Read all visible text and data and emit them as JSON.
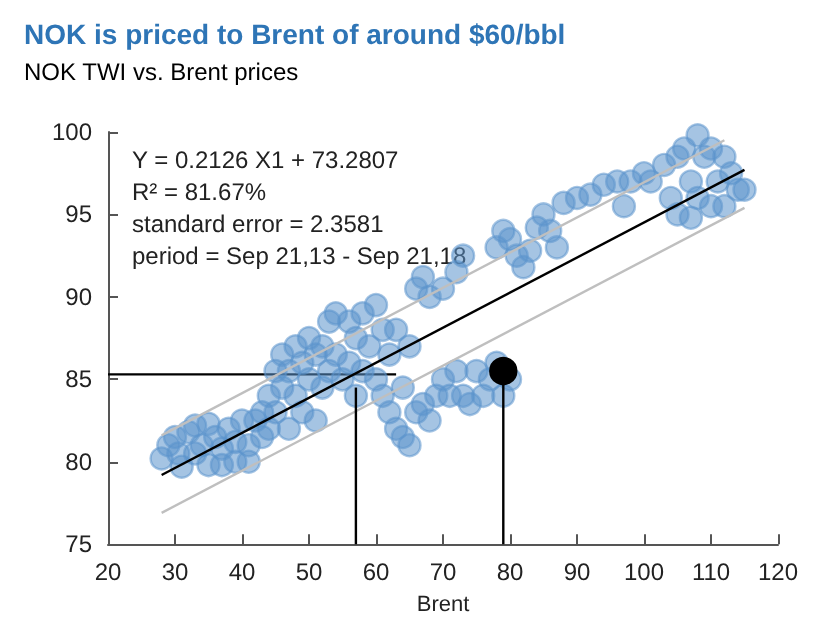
{
  "chart_data": {
    "type": "scatter",
    "title": "NOK is priced to Brent of around $60/bbl",
    "subtitle": "NOK TWI vs. Brent prices",
    "xlabel": "Brent",
    "marker": "circle",
    "grid": false,
    "annotations": [
      "Y = 0.2126 X1 + 73.2807",
      "R² = 81.67%",
      "standard error = 2.3581",
      "period = Sep 21,13 - Sep 21,18"
    ],
    "xlim": [
      20,
      120
    ],
    "xticks": [
      20,
      30,
      40,
      50,
      60,
      70,
      80,
      90,
      100,
      110,
      120
    ],
    "ylim": [
      75,
      100
    ],
    "yticks": [
      75,
      80,
      85,
      90,
      95,
      100
    ],
    "series": [
      {
        "type": "line",
        "color": "#000000",
        "marker": "none",
        "x": [
          20,
          63
        ],
        "values": [
          85.3,
          85.3
        ]
      },
      {
        "type": "scatter",
        "color": "#5b93cc",
        "x": [
          28,
          29,
          30,
          30.5,
          31,
          32,
          33,
          33,
          34,
          35,
          35,
          36,
          37,
          37,
          38,
          39,
          39,
          40,
          41,
          41,
          42,
          43,
          43,
          44,
          44,
          45,
          45,
          46,
          46,
          47,
          47,
          48,
          48,
          49,
          49,
          50,
          50,
          51,
          51,
          52,
          52,
          53,
          53,
          54,
          54,
          55,
          56,
          56,
          57,
          57,
          58,
          58,
          59,
          60,
          60,
          61,
          61,
          62,
          62,
          63,
          63,
          64,
          64,
          65,
          65,
          66,
          66,
          67,
          67,
          68,
          68,
          69,
          70,
          70,
          71,
          72,
          72,
          73,
          73,
          74,
          75,
          76,
          77,
          78,
          79,
          80,
          78,
          79,
          80,
          81,
          82,
          83,
          84,
          85,
          86,
          87,
          88,
          90,
          92,
          94,
          96,
          97,
          98,
          100,
          101,
          103,
          104,
          105,
          105,
          106,
          107,
          107,
          108,
          108,
          109,
          110,
          110,
          111,
          112,
          112,
          113,
          114,
          115
        ],
        "values": [
          80.2,
          81,
          81.5,
          80.5,
          79.7,
          81.8,
          82.2,
          80.5,
          81,
          82.3,
          79.8,
          81.5,
          80.8,
          79.8,
          82,
          81.2,
          80,
          82.5,
          81,
          80,
          82.5,
          83,
          81.5,
          82,
          84,
          83,
          85.5,
          86.5,
          84.5,
          82,
          85.5,
          87,
          84,
          83,
          86,
          87.5,
          85,
          82.5,
          86.5,
          87,
          84.5,
          88.5,
          85.5,
          89,
          86.5,
          85,
          88.5,
          86,
          84,
          87.5,
          89,
          85.5,
          87,
          89.5,
          85,
          88,
          84,
          83,
          86.5,
          82,
          88,
          81.5,
          84.5,
          81,
          87,
          83,
          90.5,
          91.2,
          83.5,
          82.5,
          90,
          84,
          90.5,
          85,
          84,
          85.5,
          91.5,
          92.5,
          84,
          83.5,
          85.5,
          84,
          85,
          86,
          84,
          85,
          93,
          94,
          93.5,
          92.5,
          91.8,
          92.8,
          94.2,
          95,
          94,
          93,
          95.7,
          96,
          96.2,
          96.8,
          97,
          95.5,
          97,
          97.5,
          97,
          98,
          96,
          98.5,
          95,
          99,
          97,
          94.8,
          99.8,
          96,
          98.5,
          99,
          95.5,
          97,
          98.5,
          95.5,
          97.5,
          96.5,
          96.5
        ]
      },
      {
        "type": "line",
        "color": "#000000",
        "marker": "none",
        "x": [
          28,
          115
        ],
        "values": [
          79.2,
          97.7
        ]
      },
      {
        "type": "line",
        "color": "#bfbfbf",
        "marker": "none",
        "x": [
          28,
          112
        ],
        "values": [
          81.6,
          99.5
        ]
      },
      {
        "type": "line",
        "color": "#bfbfbf",
        "marker": "none",
        "x": [
          28,
          115
        ],
        "values": [
          76.9,
          95.4
        ]
      },
      {
        "type": "line",
        "color": "#000000",
        "marker": "none",
        "x": [
          57,
          57
        ],
        "values": [
          75,
          84.5
        ]
      },
      {
        "type": "line",
        "color": "#000000",
        "marker": "none",
        "x": [
          79,
          79
        ],
        "values": [
          75,
          85.5
        ]
      },
      {
        "type": "scatter",
        "color": "#000000",
        "x": [
          79
        ],
        "values": [
          85.5
        ]
      }
    ]
  }
}
